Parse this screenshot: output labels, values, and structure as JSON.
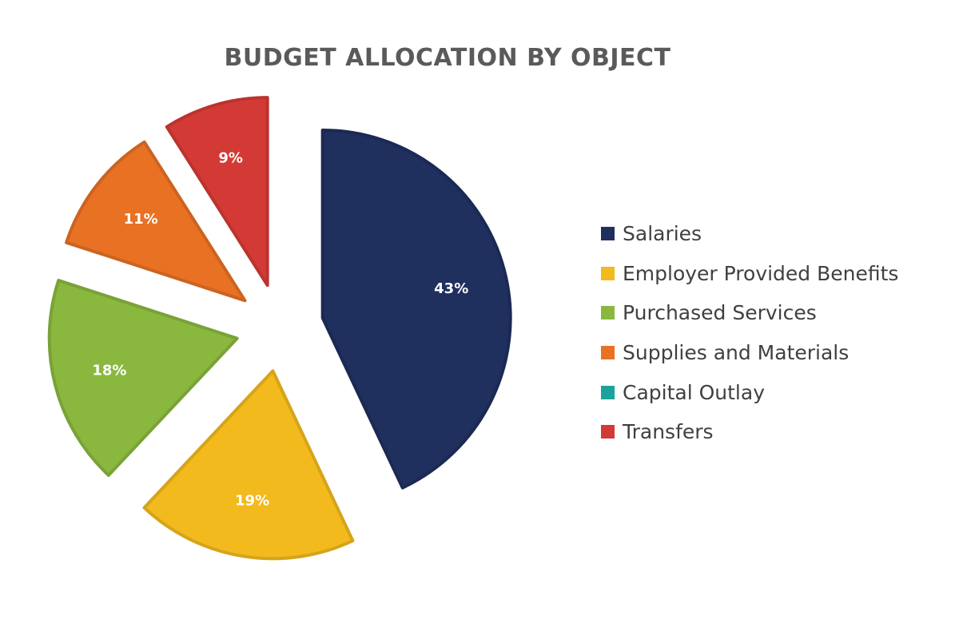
{
  "chart_data": {
    "type": "pie",
    "title": "BUDGET ALLOCATION BY OBJECT",
    "exploded": true,
    "legend_position": "right",
    "slices": [
      {
        "name": "Salaries",
        "value": 43,
        "label": "43%",
        "color": "#1f2f5e"
      },
      {
        "name": "Employer Provided Benefits",
        "value": 19,
        "label": "19%",
        "color": "#f2ba1d"
      },
      {
        "name": "Purchased Services",
        "value": 18,
        "label": "18%",
        "color": "#8ab83f"
      },
      {
        "name": "Supplies and Materials",
        "value": 11,
        "label": "11%",
        "color": "#e87124"
      },
      {
        "name": "Capital Outlay",
        "value": 0,
        "label": "",
        "color": "#1aa39a"
      },
      {
        "name": "Transfers",
        "value": 9,
        "label": "9%",
        "color": "#d43a35"
      }
    ]
  }
}
